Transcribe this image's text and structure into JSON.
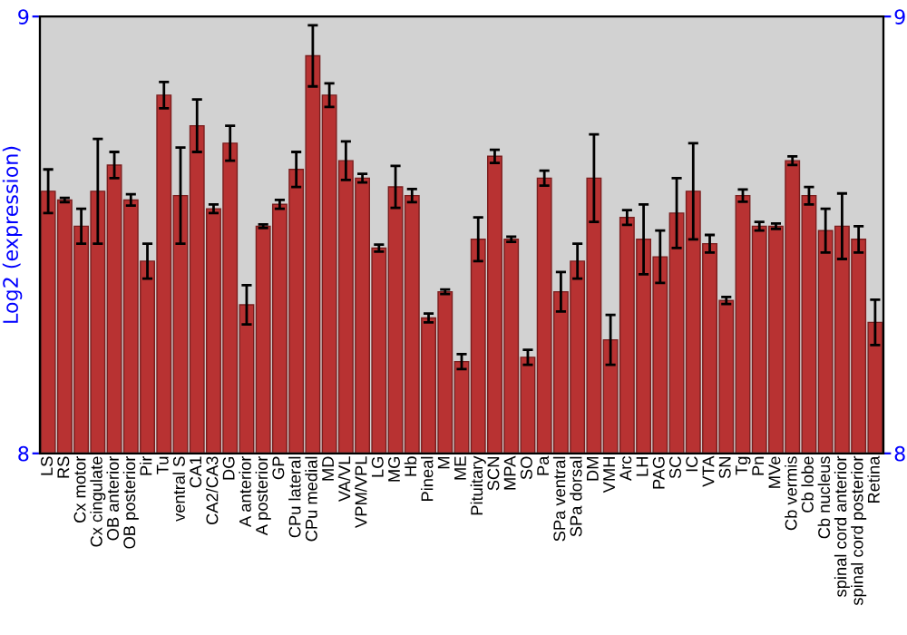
{
  "chart_data": {
    "type": "bar",
    "ylabel": "Log2 (expression)",
    "categories": [
      "LS",
      "RS",
      "Cx motor",
      "Cx cingulate",
      "OB anterior",
      "OB posterior",
      "Pir",
      "Tu",
      "ventral S",
      "CA1",
      "CA2/CA3",
      "DG",
      "A anterior",
      "A posterior",
      "GP",
      "CPu lateral",
      "CPu medial",
      "MD",
      "VA/VL",
      "VPM/VPL",
      "LG",
      "MG",
      "Hb",
      "Pineal",
      "M",
      "ME",
      "Pituitary",
      "SCN",
      "MPA",
      "SO",
      "Pa",
      "SPa ventral",
      "SPa dorsal",
      "DM",
      "VMH",
      "Arc",
      "LH",
      "PAG",
      "SC",
      "IC",
      "VTA",
      "SN",
      "Tg",
      "Pn",
      "MVe",
      "Cb vermis",
      "Cb lobe",
      "Cb nucleus",
      "spinal cord anterior",
      "spinal cord posterior",
      "Retina"
    ],
    "values": [
      8.6,
      8.58,
      8.52,
      8.6,
      8.66,
      8.58,
      8.44,
      8.82,
      8.59,
      8.75,
      8.56,
      8.71,
      8.34,
      8.52,
      8.57,
      8.65,
      8.91,
      8.82,
      8.67,
      8.63,
      8.47,
      8.61,
      8.59,
      8.31,
      8.37,
      8.21,
      8.49,
      8.68,
      8.49,
      8.22,
      8.63,
      8.37,
      8.44,
      8.63,
      8.26,
      8.54,
      8.49,
      8.45,
      8.55,
      8.6,
      8.48,
      8.35,
      8.59,
      8.52,
      8.52,
      8.67,
      8.59,
      8.51,
      8.52,
      8.49,
      8.3
    ],
    "errors": [
      0.05,
      0.005,
      0.04,
      0.12,
      0.03,
      0.013,
      0.04,
      0.03,
      0.11,
      0.06,
      0.01,
      0.04,
      0.045,
      0.004,
      0.01,
      0.04,
      0.07,
      0.027,
      0.044,
      0.01,
      0.008,
      0.048,
      0.015,
      0.01,
      0.005,
      0.017,
      0.05,
      0.015,
      0.006,
      0.017,
      0.017,
      0.045,
      0.04,
      0.1,
      0.057,
      0.017,
      0.08,
      0.06,
      0.08,
      0.11,
      0.02,
      0.008,
      0.014,
      0.01,
      0.006,
      0.01,
      0.02,
      0.05,
      0.075,
      0.03,
      0.052
    ],
    "color": "#b83232",
    "ylim": [
      8,
      9
    ],
    "yticks": [
      8,
      9
    ],
    "y2lim": [
      8,
      9
    ],
    "y2ticks": [
      8,
      9
    ],
    "grid": false,
    "legend": false
  }
}
